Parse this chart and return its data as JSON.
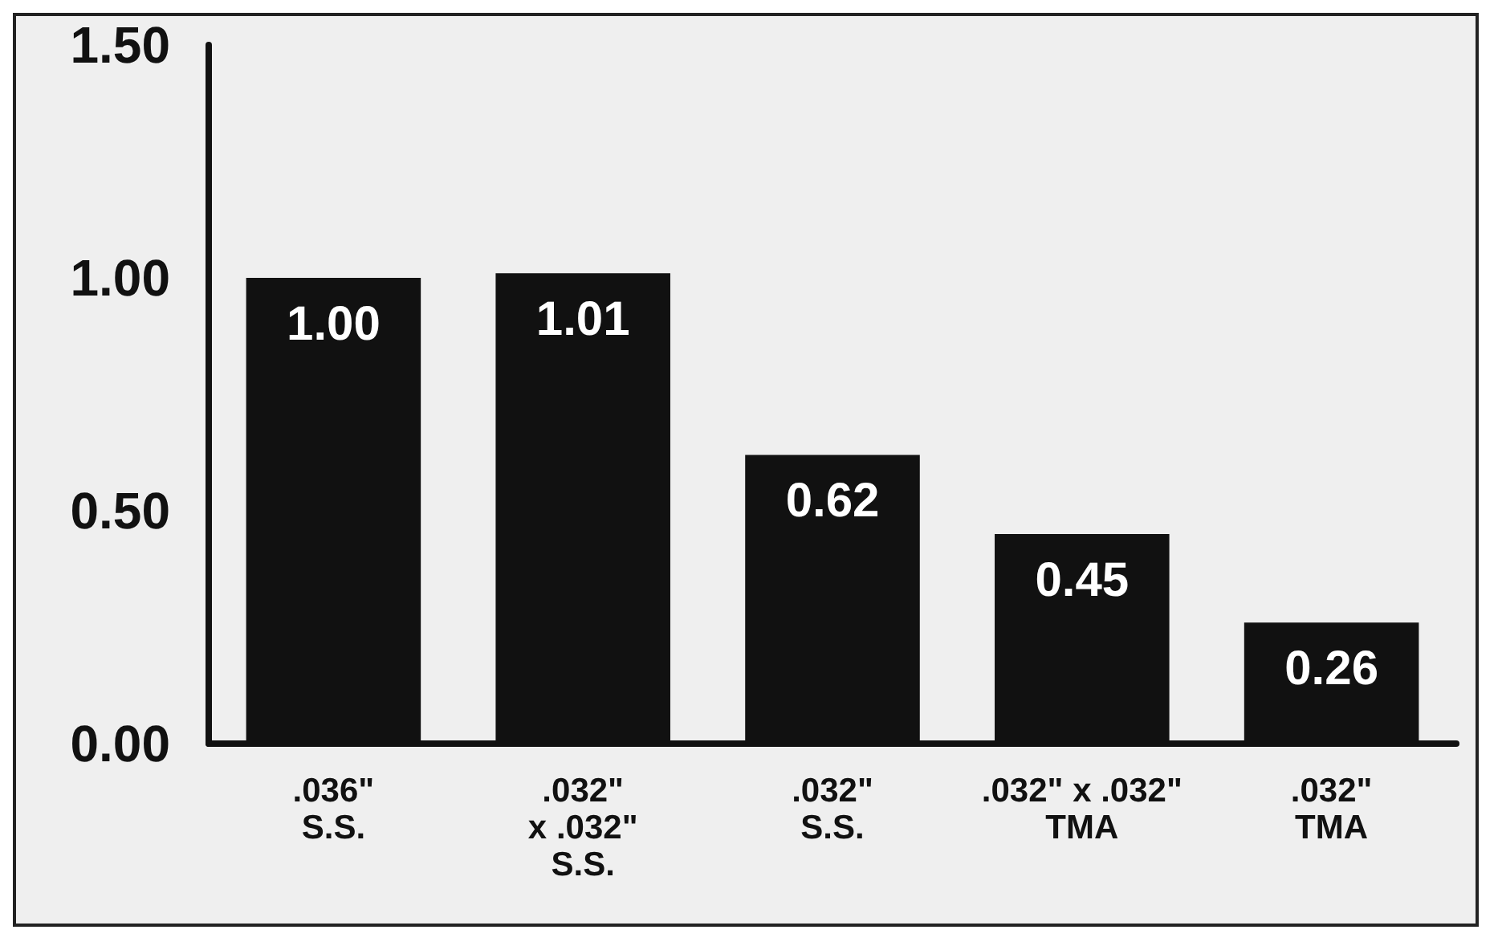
{
  "chart_data": {
    "type": "bar",
    "categories": [
      ".036\"\nS.S.",
      ".032\"\nx .032\"\nS.S.",
      ".032\"\nS.S.",
      ".032\" x .032\"\nTMA",
      ".032\"\nTMA"
    ],
    "values": [
      1.0,
      1.01,
      0.62,
      0.45,
      0.26
    ],
    "value_labels": [
      "1.00",
      "1.01",
      "0.62",
      "0.45",
      "0.26"
    ],
    "color": "#111111",
    "ylim": [
      0,
      1.5
    ],
    "yticks": [
      {
        "value": 0,
        "label": "0.00"
      },
      {
        "value": 0.5,
        "label": "0.50"
      },
      {
        "value": 1,
        "label": "1.00"
      },
      {
        "value": 1.5,
        "label": "1.50"
      }
    ],
    "grid": false
  }
}
